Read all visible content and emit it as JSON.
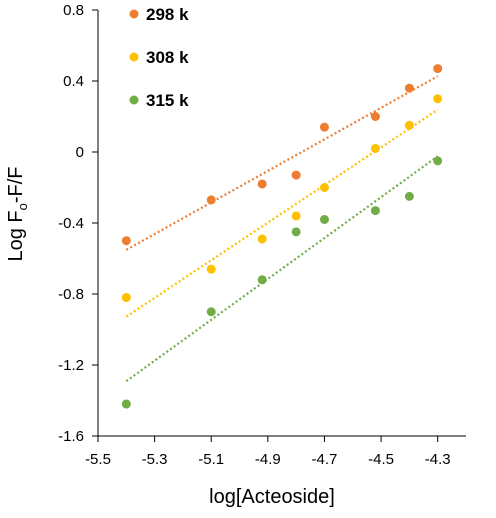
{
  "chart_data": {
    "type": "scatter",
    "title": "",
    "xlabel": "log[Acteoside]",
    "ylabel_main": "Log F",
    "ylabel_sub": "o",
    "ylabel_tail": "-F/F",
    "xlim": [
      -5.5,
      -4.2
    ],
    "ylim": [
      -1.6,
      0.8
    ],
    "xticks": [
      -5.5,
      -5.3,
      -5.1,
      -4.9,
      -4.7,
      -4.5,
      -4.3
    ],
    "yticks": [
      0.8,
      0.4,
      0,
      -0.4,
      -0.8,
      -1.2,
      -1.6
    ],
    "xtick_labels": [
      "-5.5",
      "-5.3",
      "-5.1",
      "-4.9",
      "-4.7",
      "-4.5",
      "-4.3"
    ],
    "ytick_labels": [
      "0.8",
      "0.4",
      "0",
      "-0.4",
      "-0.8",
      "-1.2",
      "-1.6"
    ],
    "legend_position": "top-left",
    "trendline": "linear, dotted",
    "series": [
      {
        "name": "298 k",
        "color": "#ED7D31",
        "x": [
          -5.4,
          -5.1,
          -4.92,
          -4.8,
          -4.7,
          -4.52,
          -4.4,
          -4.3
        ],
        "y": [
          -0.5,
          -0.27,
          -0.18,
          -0.13,
          0.14,
          0.2,
          0.36,
          0.47
        ]
      },
      {
        "name": "308 k",
        "color": "#FFC000",
        "x": [
          -5.4,
          -5.1,
          -4.92,
          -4.8,
          -4.7,
          -4.52,
          -4.4,
          -4.3
        ],
        "y": [
          -0.82,
          -0.66,
          -0.49,
          -0.36,
          -0.2,
          0.02,
          0.15,
          0.3
        ]
      },
      {
        "name": "315 k",
        "color": "#70AD47",
        "x": [
          -5.4,
          -5.1,
          -4.92,
          -4.8,
          -4.7,
          -4.52,
          -4.4,
          -4.3
        ],
        "y": [
          -1.42,
          -0.9,
          -0.72,
          -0.45,
          -0.38,
          -0.33,
          -0.25,
          -0.05
        ]
      }
    ]
  }
}
